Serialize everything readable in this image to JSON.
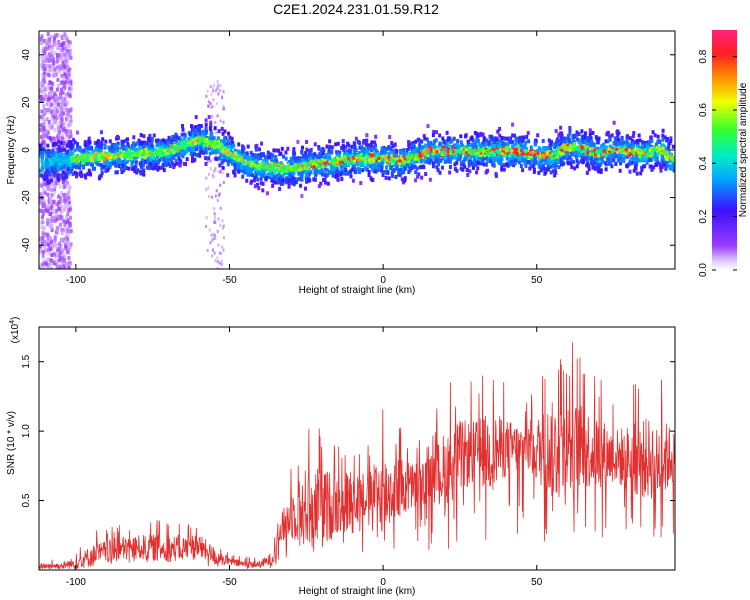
{
  "page": {
    "title": "C2E1.2024.231.01.59.R12"
  },
  "chart_data": [
    {
      "type": "heatmap",
      "title": "C2E1.2024.231.01.59.R12",
      "xlabel": "Height of straight line (km)",
      "ylabel": "Frequency (Hz)",
      "xlim": [
        -112,
        95
      ],
      "ylim": [
        -50,
        50
      ],
      "x_ticks": [
        -100,
        -50,
        0,
        50
      ],
      "y_ticks": [
        -40,
        -20,
        0,
        20,
        40
      ],
      "colorbar": {
        "label": "Normalized spectral amplitude",
        "ticks": [
          0.0,
          0.2,
          0.4,
          0.6,
          0.8
        ],
        "range": [
          0,
          0.9
        ],
        "colormap": "rainbow (purple-blue-cyan-green-yellow-red-magenta)"
      },
      "ridge": {
        "description": "central frequency ridge vs height",
        "x": [
          -110,
          -100,
          -90,
          -80,
          -70,
          -65,
          -60,
          -55,
          -50,
          -45,
          -40,
          -35,
          -30,
          -25,
          -20,
          -10,
          0,
          5,
          10,
          15,
          20,
          30,
          40,
          50,
          55,
          60,
          65,
          70,
          75,
          80,
          85,
          90,
          93
        ],
        "y": [
          -4,
          -3,
          -2,
          -1,
          0,
          3,
          5,
          3,
          -1,
          -5,
          -6,
          -7,
          -7,
          -6,
          -5,
          -3,
          -3,
          -4,
          -2,
          0,
          0,
          0,
          0,
          -1,
          -2,
          2,
          1,
          -1,
          1,
          0,
          -1,
          1,
          -3
        ]
      },
      "noise_band_x": [
        -112,
        -102
      ]
    },
    {
      "type": "line",
      "xlabel": "Height of straight line (km)",
      "ylabel": "SNR (10 * v/v)",
      "y_multiplier_label": "(x10",
      "y_multiplier_exp": "4",
      "xlim": [
        -112,
        95
      ],
      "ylim": [
        0,
        1.75
      ],
      "x_ticks": [
        -100,
        -50,
        0,
        50
      ],
      "y_ticks": [
        0.5,
        1.0,
        1.5
      ],
      "series": [
        {
          "color": "#e03030",
          "x": [
            -112,
            -105,
            -100,
            -95,
            -90,
            -85,
            -80,
            -75,
            -70,
            -65,
            -60,
            -55,
            -50,
            -45,
            -40,
            -36,
            -33,
            -30,
            -25,
            -20,
            -15,
            -10,
            -5,
            0,
            5,
            10,
            15,
            20,
            25,
            30,
            35,
            40,
            45,
            50,
            55,
            60,
            65,
            70,
            75,
            80,
            85,
            90,
            95
          ],
          "values": [
            0.03,
            0.03,
            0.05,
            0.1,
            0.13,
            0.15,
            0.16,
            0.16,
            0.15,
            0.16,
            0.17,
            0.1,
            0.06,
            0.04,
            0.04,
            0.08,
            0.3,
            0.4,
            0.45,
            0.45,
            0.47,
            0.5,
            0.55,
            0.55,
            0.58,
            0.6,
            0.65,
            0.72,
            0.82,
            0.85,
            0.85,
            0.88,
            0.88,
            0.87,
            0.86,
            0.85,
            0.88,
            0.85,
            0.82,
            0.8,
            0.8,
            0.8,
            0.82
          ],
          "envelope_max": [
            0.08,
            0.08,
            0.15,
            0.28,
            0.32,
            0.35,
            0.36,
            0.38,
            0.36,
            0.38,
            0.38,
            0.25,
            0.12,
            0.1,
            0.1,
            0.2,
            0.55,
            0.8,
            1.1,
            1.12,
            0.95,
            1.05,
            0.9,
            1.2,
            1.1,
            1.0,
            1.0,
            1.35,
            1.4,
            1.35,
            1.5,
            1.35,
            1.25,
            1.4,
            1.65,
            1.72,
            1.55,
            1.45,
            1.25,
            1.35,
            1.45,
            1.48,
            1.25
          ]
        }
      ]
    }
  ]
}
